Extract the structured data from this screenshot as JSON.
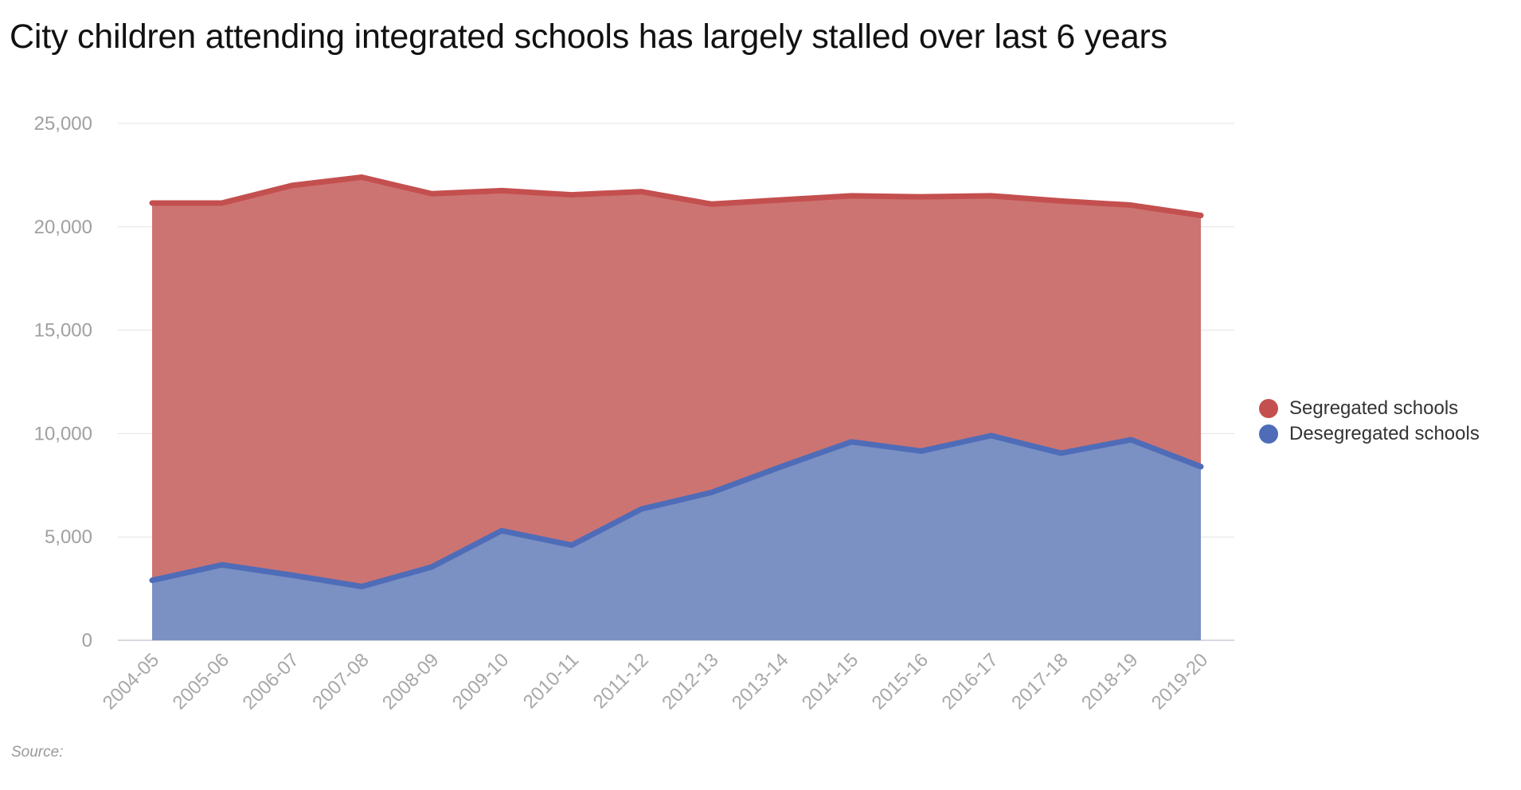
{
  "title": "City children attending integrated schools has largely stalled over last 6 years",
  "source": "Source:",
  "chart_data": {
    "type": "area",
    "stacked": true,
    "categories": [
      "2004-05",
      "2005-06",
      "2006-07",
      "2007-08",
      "2008-09",
      "2009-10",
      "2010-11",
      "2011-12",
      "2012-13",
      "2013-14",
      "2014-15",
      "2015-16",
      "2016-17",
      "2017-18",
      "2018-19",
      "2019-20"
    ],
    "series": [
      {
        "name": "Desegregated schools",
        "color": "#4f6cb8",
        "fill": "#7b90c3",
        "values": [
          2900,
          3650,
          3150,
          2600,
          3550,
          5300,
          4600,
          6350,
          7150,
          8400,
          9600,
          9150,
          9900,
          9050,
          9700,
          8400
        ]
      },
      {
        "name": "Segregated schools",
        "color": "#c44f4f",
        "fill": "#cc7472",
        "values": [
          18250,
          17500,
          18850,
          19800,
          18050,
          16450,
          16950,
          15350,
          13950,
          12900,
          11900,
          12300,
          11600,
          12200,
          11350,
          12150
        ]
      }
    ],
    "ylim": [
      0,
      25000
    ],
    "yticks": [
      0,
      5000,
      10000,
      15000,
      20000,
      25000
    ],
    "ytick_labels": [
      "0",
      "5,000",
      "10,000",
      "15,000",
      "20,000",
      "25,000"
    ],
    "grid": true,
    "legend_position": "right",
    "xlabel": "",
    "ylabel": ""
  }
}
